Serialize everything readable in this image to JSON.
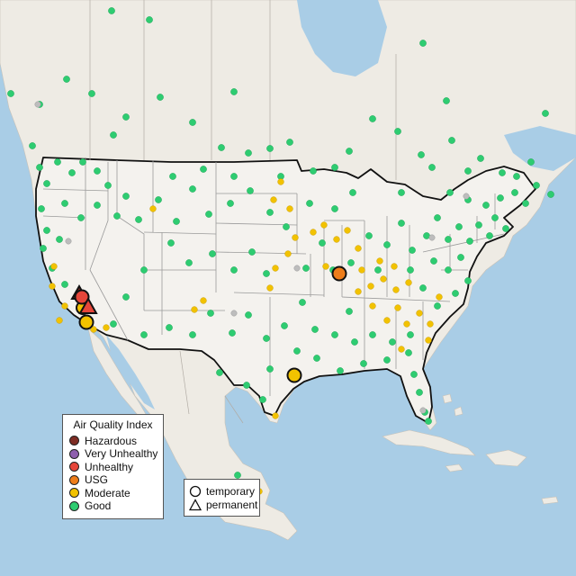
{
  "legend": {
    "title": "Air Quality Index",
    "items": [
      {
        "label": "Hazardous",
        "color": "#7e2d24"
      },
      {
        "label": "Very Unhealthy",
        "color": "#8e5fad"
      },
      {
        "label": "Unhealthy",
        "color": "#e6463a"
      },
      {
        "label": "USG",
        "color": "#ee7d1a"
      },
      {
        "label": "Moderate",
        "color": "#f2c200"
      },
      {
        "label": "Good",
        "color": "#2ecc71"
      }
    ]
  },
  "monitor_legend": {
    "items": [
      {
        "label": "temporary",
        "shape": "circle-icon"
      },
      {
        "label": "permanent",
        "shape": "triangle-icon"
      }
    ]
  },
  "colors": {
    "ocean": "#a9cde6",
    "land": "#eeebe4",
    "us_land": "#f4f2ee",
    "border": "#111111",
    "state_line": "#9a9a9a",
    "no_data": "#bdbdbd"
  }
}
